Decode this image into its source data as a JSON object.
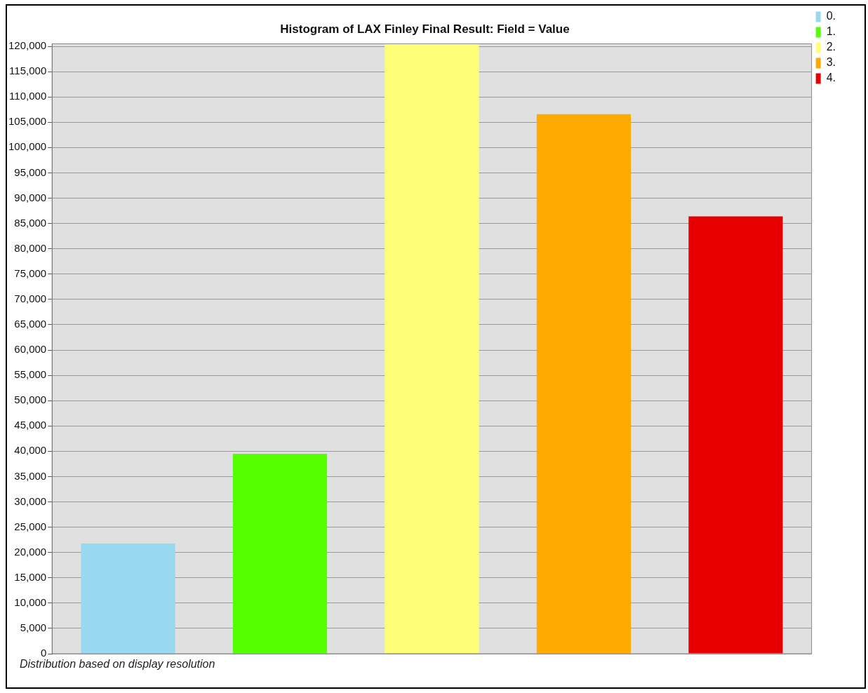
{
  "chart_data": {
    "type": "bar",
    "title": "Histogram of LAX Finley Final Result: Field = Value",
    "categories": [
      null,
      null,
      null,
      null,
      null
    ],
    "series": [
      {
        "name": "0.",
        "color": "#99d9f0",
        "values": [
          21800,
          null,
          null,
          null,
          null
        ]
      },
      {
        "name": "1.",
        "color": "#55ff00",
        "values": [
          null,
          39500,
          null,
          null,
          null
        ]
      },
      {
        "name": "2.",
        "color": "#ffff77",
        "values": [
          null,
          null,
          120500,
          null,
          null
        ]
      },
      {
        "name": "3.",
        "color": "#ffaa00",
        "values": [
          null,
          null,
          null,
          106600,
          null
        ]
      },
      {
        "name": "4.",
        "color": "#e60000",
        "values": [
          null,
          null,
          null,
          null,
          86400
        ]
      }
    ],
    "ylim": [
      0,
      120500
    ],
    "yticks": [
      {
        "value": 0,
        "label": "0"
      },
      {
        "value": 5000,
        "label": "5,000"
      },
      {
        "value": 10000,
        "label": "10,000"
      },
      {
        "value": 15000,
        "label": "15,000"
      },
      {
        "value": 20000,
        "label": "20,000"
      },
      {
        "value": 25000,
        "label": "25,000"
      },
      {
        "value": 30000,
        "label": "30,000"
      },
      {
        "value": 35000,
        "label": "35,000"
      },
      {
        "value": 40000,
        "label": "40,000"
      },
      {
        "value": 45000,
        "label": "45,000"
      },
      {
        "value": 50000,
        "label": "50,000"
      },
      {
        "value": 55000,
        "label": "55,000"
      },
      {
        "value": 60000,
        "label": "60,000"
      },
      {
        "value": 65000,
        "label": "65,000"
      },
      {
        "value": 70000,
        "label": "70,000"
      },
      {
        "value": 75000,
        "label": "75,000"
      },
      {
        "value": 80000,
        "label": "80,000"
      },
      {
        "value": 85000,
        "label": "85,000"
      },
      {
        "value": 90000,
        "label": "90,000"
      },
      {
        "value": 95000,
        "label": "95,000"
      },
      {
        "value": 100000,
        "label": "100,000"
      },
      {
        "value": 105000,
        "label": "105,000"
      },
      {
        "value": 110000,
        "label": "110,000"
      },
      {
        "value": 115000,
        "label": "115,000"
      },
      {
        "value": 120000,
        "label": "120,000"
      }
    ],
    "grid": "y",
    "legend": "top right",
    "tick_labels": "y",
    "annotations": [
      "Distribution based on display resolution"
    ]
  }
}
